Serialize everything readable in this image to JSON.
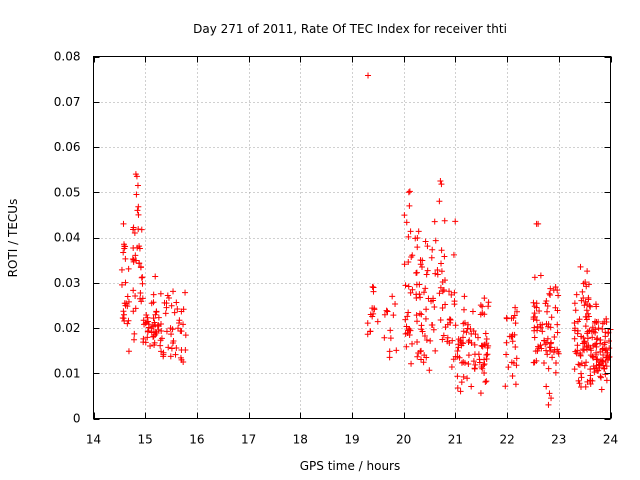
{
  "chart_data": {
    "type": "scatter",
    "title": "Day 271 of 2011, Rate Of TEC Index for receiver thti",
    "xlabel": "GPS time / hours",
    "ylabel": "ROTI / TECUs",
    "xlim": [
      14,
      24
    ],
    "ylim": [
      0,
      0.08
    ],
    "grid": true,
    "marker": "+",
    "color": "#ff0000",
    "x_ticks": [
      14,
      15,
      16,
      17,
      18,
      19,
      20,
      21,
      22,
      23,
      24
    ],
    "x_tick_labels": [
      "14",
      "15",
      "16",
      "17",
      "18",
      "19",
      "20",
      "21",
      "22",
      "23",
      "24"
    ],
    "y_ticks": [
      0,
      0.01,
      0.02,
      0.03,
      0.04,
      0.05,
      0.06,
      0.07,
      0.08
    ],
    "y_tick_labels": [
      "0",
      "0.01",
      "0.02",
      "0.03",
      "0.04",
      "0.05",
      "0.06",
      "0.07",
      "0.08"
    ],
    "series": [
      {
        "name": "ROTI",
        "clusters": [
          {
            "x_start": 14.55,
            "x_end": 14.7,
            "y_min": 0.012,
            "y_max": 0.043,
            "count": 22
          },
          {
            "x_start": 14.75,
            "x_end": 14.95,
            "y_min": 0.017,
            "y_max": 0.054,
            "count": 30
          },
          {
            "x_start": 14.95,
            "x_end": 15.3,
            "y_min": 0.015,
            "y_max": 0.027,
            "count": 35
          },
          {
            "x_start": 15.15,
            "x_end": 15.45,
            "y_min": 0.01,
            "y_max": 0.033,
            "count": 25
          },
          {
            "x_start": 15.45,
            "x_end": 15.8,
            "y_min": 0.01,
            "y_max": 0.031,
            "count": 30
          },
          {
            "x_start": 19.3,
            "x_end": 19.5,
            "y_min": 0.016,
            "y_max": 0.035,
            "count": 14
          },
          {
            "x_start": 19.6,
            "x_end": 19.9,
            "y_min": 0.01,
            "y_max": 0.032,
            "count": 12
          },
          {
            "x_start": 20.0,
            "x_end": 20.3,
            "y_min": 0.01,
            "y_max": 0.05,
            "count": 40
          },
          {
            "x_start": 20.3,
            "x_end": 20.6,
            "y_min": 0.01,
            "y_max": 0.043,
            "count": 40
          },
          {
            "x_start": 20.6,
            "x_end": 21.0,
            "y_min": 0.009,
            "y_max": 0.052,
            "count": 40
          },
          {
            "x_start": 21.0,
            "x_end": 21.3,
            "y_min": 0.006,
            "y_max": 0.03,
            "count": 35
          },
          {
            "x_start": 21.3,
            "x_end": 21.65,
            "y_min": 0.005,
            "y_max": 0.03,
            "count": 45
          },
          {
            "x_start": 21.95,
            "x_end": 22.2,
            "y_min": 0.006,
            "y_max": 0.029,
            "count": 25
          },
          {
            "x_start": 22.5,
            "x_end": 22.75,
            "y_min": 0.007,
            "y_max": 0.043,
            "count": 35
          },
          {
            "x_start": 22.75,
            "x_end": 23.0,
            "y_min": 0.003,
            "y_max": 0.033,
            "count": 40
          },
          {
            "x_start": 23.3,
            "x_end": 23.6,
            "y_min": 0.006,
            "y_max": 0.034,
            "count": 70
          },
          {
            "x_start": 23.6,
            "x_end": 24.0,
            "y_min": 0.005,
            "y_max": 0.026,
            "count": 90
          }
        ],
        "points": [
          {
            "x": 19.31,
            "y": 0.0758
          },
          {
            "x": 14.82,
            "y": 0.054
          },
          {
            "x": 14.84,
            "y": 0.0535
          },
          {
            "x": 14.86,
            "y": 0.0515
          },
          {
            "x": 14.83,
            "y": 0.0495
          },
          {
            "x": 14.85,
            "y": 0.046
          },
          {
            "x": 14.87,
            "y": 0.045
          },
          {
            "x": 14.8,
            "y": 0.041
          },
          {
            "x": 14.58,
            "y": 0.043
          },
          {
            "x": 14.59,
            "y": 0.0385
          },
          {
            "x": 14.61,
            "y": 0.038
          },
          {
            "x": 20.12,
            "y": 0.0502
          },
          {
            "x": 20.1,
            "y": 0.05
          },
          {
            "x": 20.11,
            "y": 0.047
          },
          {
            "x": 20.71,
            "y": 0.0525
          },
          {
            "x": 20.73,
            "y": 0.0518
          },
          {
            "x": 20.69,
            "y": 0.048
          },
          {
            "x": 20.6,
            "y": 0.0435
          },
          {
            "x": 22.57,
            "y": 0.043
          },
          {
            "x": 22.6,
            "y": 0.043
          },
          {
            "x": 22.8,
            "y": 0.003
          },
          {
            "x": 22.85,
            "y": 0.0045
          },
          {
            "x": 23.42,
            "y": 0.0335
          },
          {
            "x": 21.1,
            "y": 0.006
          }
        ]
      }
    ]
  }
}
